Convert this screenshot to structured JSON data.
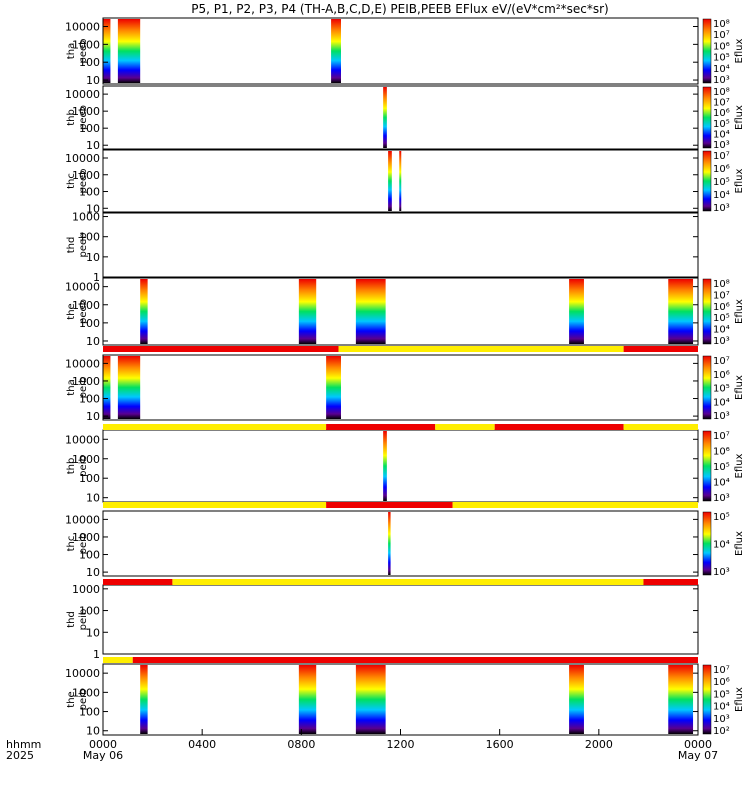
{
  "chart_data": {
    "type": "heatmap",
    "title": "P5, P1, P2, P3, P4 (TH-A,B,C,D,E) PEIB,PEEB EFlux eV/(eV*cm²*sec*sr)",
    "colorbar_label": "Eflux",
    "x_axis": {
      "row_labels": [
        "hhmm",
        "2025"
      ],
      "ticks": [
        "0000",
        "0400",
        "0800",
        "1200",
        "1600",
        "2000",
        "0000"
      ],
      "tick_hours": [
        0,
        4,
        8,
        12,
        16,
        20,
        24
      ],
      "day_labels": [
        {
          "text": "May 06",
          "hour": 0
        },
        {
          "text": "May 07",
          "hour": 24
        }
      ]
    },
    "panels": [
      {
        "id": "tha-peeb",
        "ylabel": [
          "tha",
          "peeb"
        ],
        "yticks": [
          "10000",
          "1000",
          "100",
          "10"
        ],
        "ylog": [
          6,
          30000
        ],
        "colorbar": [
          "10⁸",
          "10⁷",
          "10⁶",
          "10⁵",
          "10⁴",
          "10³"
        ],
        "blocks": [
          [
            0.0,
            0.3
          ],
          [
            0.6,
            1.5
          ],
          [
            9.2,
            9.6
          ]
        ]
      },
      {
        "id": "thb-peeb",
        "ylabel": [
          "thb",
          "peeb"
        ],
        "yticks": [
          "10000",
          "1000",
          "100",
          "10"
        ],
        "ylog": [
          6,
          30000
        ],
        "colorbar": [
          "10⁸",
          "10⁷",
          "10⁶",
          "10⁵",
          "10⁴",
          "10³"
        ],
        "blocks": [
          [
            11.3,
            11.45
          ]
        ]
      },
      {
        "id": "thc-peeb",
        "ylabel": [
          "thc",
          "peeb"
        ],
        "yticks": [
          "10000",
          "1000",
          "100",
          "10"
        ],
        "ylog": [
          6,
          30000
        ],
        "colorbar": [
          "10⁷",
          "10⁶",
          "10⁵",
          "10⁴",
          "10³"
        ],
        "blocks": [
          [
            11.5,
            11.65
          ],
          [
            11.95,
            12.02
          ]
        ]
      },
      {
        "id": "thd-peeb",
        "ylabel": [
          "thd",
          "peeb"
        ],
        "yticks": [
          "1000",
          "100",
          "10",
          "1"
        ],
        "ylog": [
          1,
          1500
        ],
        "colorbar": null,
        "blocks": []
      },
      {
        "id": "the-peeb",
        "ylabel": [
          "the",
          "peeb"
        ],
        "yticks": [
          "10000",
          "1000",
          "100",
          "10"
        ],
        "ylog": [
          6,
          30000
        ],
        "colorbar": [
          "10⁸",
          "10⁷",
          "10⁶",
          "10⁵",
          "10⁴",
          "10³"
        ],
        "blocks": [
          [
            1.5,
            1.8
          ],
          [
            7.9,
            8.6
          ],
          [
            10.2,
            11.4
          ],
          [
            18.8,
            19.4
          ],
          [
            22.8,
            23.8
          ]
        ]
      },
      {
        "id": "tha-peib",
        "ylabel": [
          "tha",
          "peib"
        ],
        "yticks": [
          "10000",
          "1000",
          "100",
          "10"
        ],
        "ylog": [
          6,
          30000
        ],
        "colorbar": [
          "10⁷",
          "10⁶",
          "10⁵",
          "10⁴",
          "10³"
        ],
        "blocks": [
          [
            0.0,
            0.3
          ],
          [
            0.6,
            1.5
          ],
          [
            9.0,
            9.6
          ]
        ]
      },
      {
        "id": "thb-peib",
        "ylabel": [
          "thb",
          "peib"
        ],
        "yticks": [
          "10000",
          "1000",
          "100",
          "10"
        ],
        "ylog": [
          6,
          30000
        ],
        "colorbar": [
          "10⁷",
          "10⁶",
          "10⁵",
          "10⁴",
          "10³"
        ],
        "blocks": [
          [
            11.3,
            11.45
          ]
        ]
      },
      {
        "id": "thc-peib",
        "ylabel": [
          "thc",
          "peib"
        ],
        "yticks": [
          "10000",
          "1000",
          "100",
          "10"
        ],
        "ylog": [
          6,
          30000
        ],
        "colorbar": [
          "10⁵",
          "10⁴",
          "10³"
        ],
        "blocks": [
          [
            11.5,
            11.6
          ]
        ]
      },
      {
        "id": "thd-peib",
        "ylabel": [
          "thd",
          "peib"
        ],
        "yticks": [
          "1000",
          "100",
          "10",
          "1"
        ],
        "ylog": [
          1,
          1500
        ],
        "colorbar": null,
        "blocks": []
      },
      {
        "id": "the-peib",
        "ylabel": [
          "the",
          "peib"
        ],
        "yticks": [
          "10000",
          "1000",
          "100",
          "10"
        ],
        "ylog": [
          6,
          30000
        ],
        "colorbar": [
          "10⁷",
          "10⁶",
          "10⁵",
          "10⁴",
          "10³",
          "10²"
        ],
        "blocks": [
          [
            1.5,
            1.8
          ],
          [
            7.9,
            8.6
          ],
          [
            10.2,
            11.4
          ],
          [
            18.8,
            19.4
          ],
          [
            22.8,
            23.8
          ]
        ]
      }
    ],
    "mode_bars": [
      {
        "after_panel": 4,
        "segments": [
          [
            "red",
            0,
            9.5
          ],
          [
            "yellow",
            9.5,
            21
          ],
          [
            "red",
            21,
            24
          ]
        ]
      },
      {
        "after_panel": 5,
        "segments": [
          [
            "yellow",
            0,
            9
          ],
          [
            "red",
            9,
            13.4
          ],
          [
            "yellow",
            13.4,
            15.8
          ],
          [
            "red",
            15.8,
            21
          ],
          [
            "yellow",
            21,
            24
          ]
        ]
      },
      {
        "after_panel": 6,
        "segments": [
          [
            "yellow",
            0,
            9
          ],
          [
            "red",
            9,
            14.1
          ],
          [
            "yellow",
            14.1,
            24
          ]
        ]
      },
      {
        "after_panel": 7,
        "segments": [
          [
            "red",
            0,
            2.8
          ],
          [
            "yellow",
            2.8,
            21.8
          ],
          [
            "red",
            21.8,
            24
          ]
        ]
      },
      {
        "after_panel": 8,
        "segments": [
          [
            "yellow",
            0,
            1.2
          ],
          [
            "red",
            1.2,
            24
          ]
        ]
      }
    ],
    "colors": {
      "red": "#ee0000",
      "yellow": "#ffee00"
    }
  }
}
